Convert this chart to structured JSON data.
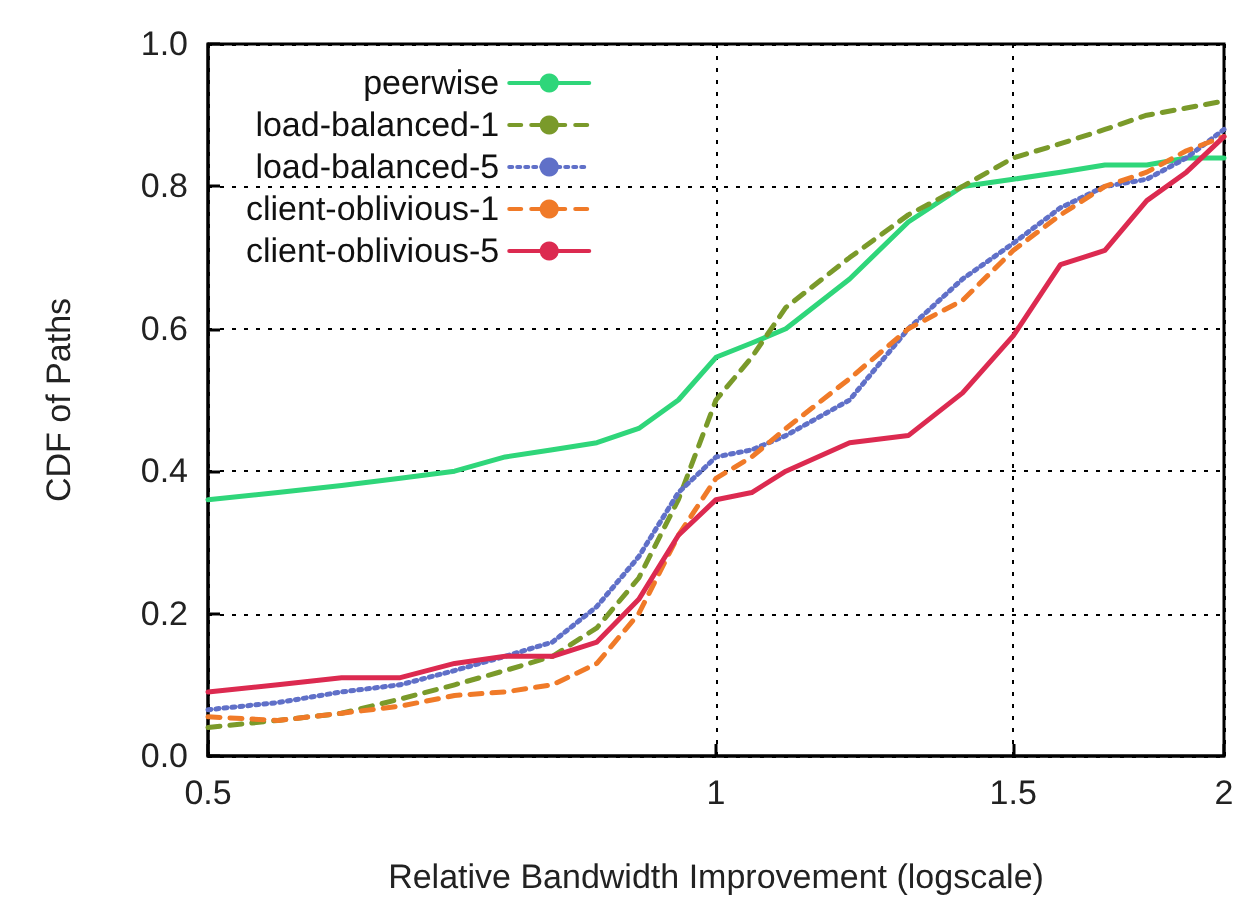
{
  "chart_data": {
    "type": "line",
    "xlabel": "Relative Bandwidth Improvement (logscale)",
    "ylabel": "CDF of Paths",
    "log": "x",
    "grid": true,
    "legend": "top left",
    "marker": "none",
    "xlim": [
      0.5,
      2
    ],
    "xticks": [
      0.5,
      1,
      1.5,
      2
    ],
    "ylim": [
      0,
      1
    ],
    "yticks": [
      {
        "value": 0,
        "label": "0.0"
      },
      {
        "value": 0.2,
        "label": "0.2"
      },
      {
        "value": 0.4,
        "label": "0.4"
      },
      {
        "value": 0.6,
        "label": "0.6"
      },
      {
        "value": 0.8,
        "label": "0.8"
      },
      {
        "value": 1,
        "label": "1.0"
      }
    ],
    "x": [
      0.5,
      0.55,
      0.6,
      0.65,
      0.7,
      0.75,
      0.8,
      0.85,
      0.9,
      0.95,
      1.0,
      1.05,
      1.1,
      1.2,
      1.3,
      1.4,
      1.5,
      1.6,
      1.7,
      1.8,
      1.9,
      2.0
    ],
    "series": [
      {
        "name": "peerwise",
        "color": "#2fd67a",
        "line_style": "solid",
        "values": [
          0.36,
          0.37,
          0.38,
          0.39,
          0.4,
          0.42,
          0.43,
          0.44,
          0.46,
          0.5,
          0.56,
          0.58,
          0.6,
          0.67,
          0.75,
          0.8,
          0.81,
          0.82,
          0.83,
          0.83,
          0.84,
          0.84
        ]
      },
      {
        "name": "load-balanced-1",
        "color": "#7a9a2a",
        "line_style": "dashed",
        "values": [
          0.04,
          0.05,
          0.06,
          0.08,
          0.1,
          0.12,
          0.14,
          0.18,
          0.25,
          0.36,
          0.5,
          0.56,
          0.63,
          0.7,
          0.76,
          0.8,
          0.84,
          0.86,
          0.88,
          0.9,
          0.91,
          0.92
        ]
      },
      {
        "name": "load-balanced-5",
        "color": "#6070c8",
        "line_style": "dotted",
        "values": [
          0.065,
          0.075,
          0.09,
          0.1,
          0.12,
          0.14,
          0.16,
          0.21,
          0.28,
          0.37,
          0.42,
          0.43,
          0.45,
          0.5,
          0.6,
          0.67,
          0.72,
          0.77,
          0.8,
          0.81,
          0.84,
          0.88
        ]
      },
      {
        "name": "client-oblivious-1",
        "color": "#f07a28",
        "line_style": "dashed",
        "values": [
          0.055,
          0.05,
          0.06,
          0.07,
          0.085,
          0.09,
          0.1,
          0.13,
          0.2,
          0.31,
          0.39,
          0.42,
          0.46,
          0.53,
          0.6,
          0.64,
          0.71,
          0.76,
          0.8,
          0.82,
          0.85,
          0.87
        ]
      },
      {
        "name": "client-oblivious-5",
        "color": "#dc2a50",
        "line_style": "solid",
        "values": [
          0.09,
          0.1,
          0.11,
          0.11,
          0.13,
          0.14,
          0.14,
          0.16,
          0.22,
          0.31,
          0.36,
          0.37,
          0.4,
          0.44,
          0.45,
          0.51,
          0.59,
          0.69,
          0.71,
          0.78,
          0.82,
          0.87
        ]
      }
    ]
  }
}
